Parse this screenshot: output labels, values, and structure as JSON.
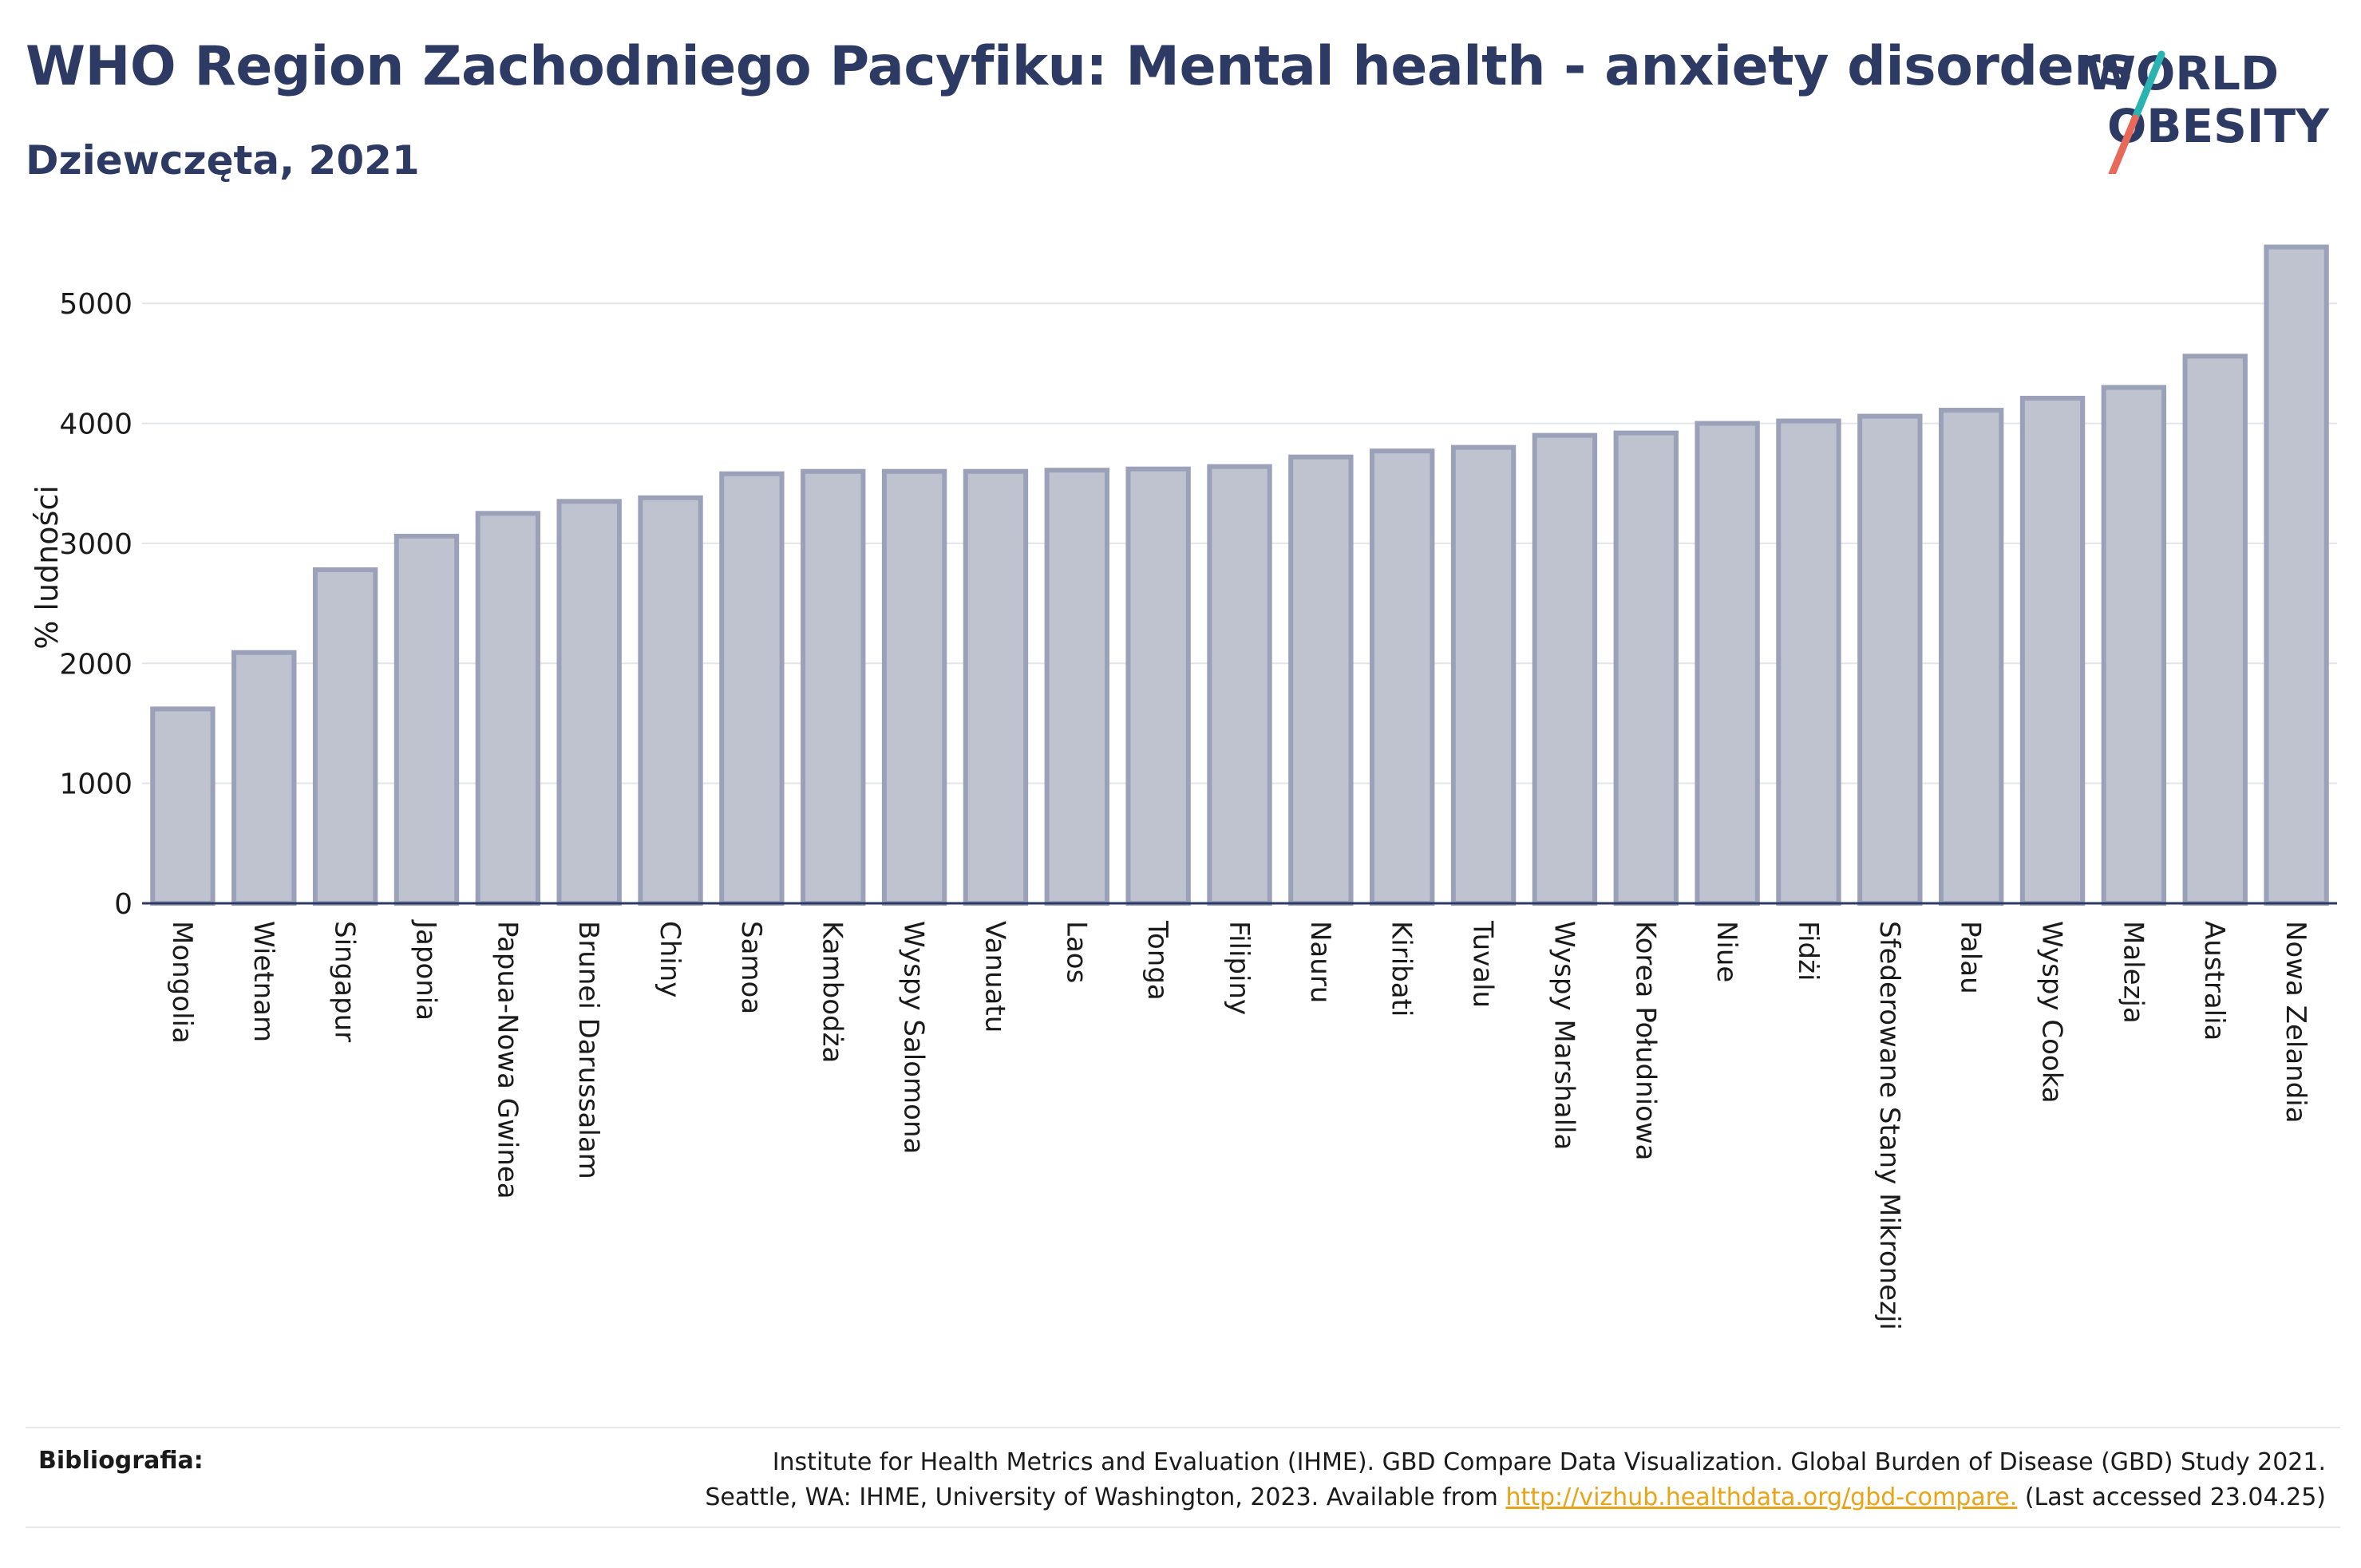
{
  "header": {
    "title": "WHO Region Zachodniego Pacyfiku: Mental health - anxiety disorders",
    "subtitle": "Dziewczęta, 2021"
  },
  "logo": {
    "line1": "WORLD",
    "line2": "OBESITY",
    "colors": {
      "text": "#2d3a63",
      "slash_top": "#2ab3b0",
      "slash_bottom": "#e8685a"
    }
  },
  "chart_data": {
    "type": "bar",
    "ylabel": "% ludności",
    "ylim": [
      0,
      5600
    ],
    "yticks": [
      0,
      1000,
      2000,
      3000,
      4000,
      5000
    ],
    "grid": true,
    "bar_color": "#bfc3d0",
    "bar_edge_color": "#9ba1b8",
    "categories": [
      "Mongolia",
      "Wietnam",
      "Singapur",
      "Japonia",
      "Papua-Nowa Gwinea",
      "Brunei Darussalam",
      "Chiny",
      "Samoa",
      "Kambodża",
      "Wyspy Salomona",
      "Vanuatu",
      "Laos",
      "Tonga",
      "Filipiny",
      "Nauru",
      "Kiribati",
      "Tuvalu",
      "Wyspy Marshalla",
      "Korea Południowa",
      "Niue",
      "Fidżi",
      "Sfederowane Stany Mikronezji",
      "Palau",
      "Wyspy Cooka",
      "Malezja",
      "Australia",
      "Nowa Zelandia"
    ],
    "values": [
      1620,
      2090,
      2780,
      3060,
      3250,
      3350,
      3380,
      3580,
      3600,
      3600,
      3600,
      3610,
      3620,
      3640,
      3720,
      3770,
      3800,
      3900,
      3920,
      4000,
      4020,
      4060,
      4110,
      4210,
      4300,
      4560,
      5470
    ]
  },
  "footer": {
    "label": "Bibliografia:",
    "line1": "Institute for Health Metrics and Evaluation (IHME). GBD Compare Data Visualization. Global Burden of Disease (GBD) Study 2021.",
    "line2_pre": "Seattle, WA: IHME, University of Washington, 2023. Available from ",
    "link": "http://vizhub.healthdata.org/gbd-compare.",
    "line2_post": " (Last accessed 23.04.25)"
  }
}
